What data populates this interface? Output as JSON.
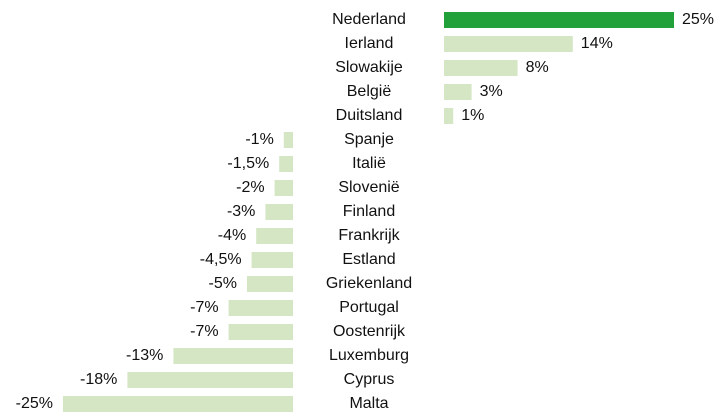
{
  "chart_data": {
    "type": "diverging-bar",
    "categories": [
      "Nederland",
      "Ierland",
      "Slowakije",
      "België",
      "Duitsland",
      "Spanje",
      "Italië",
      "Slovenië",
      "Finland",
      "Frankrijk",
      "Estland",
      "Griekenland",
      "Portugal",
      "Oostenrijk",
      "Luxemburg",
      "Cyprus",
      "Malta"
    ],
    "values": [
      25,
      14,
      8,
      3,
      1,
      -1,
      -1.5,
      -2,
      -3,
      -4,
      -4.5,
      -5,
      -7,
      -7,
      -13,
      -18,
      -25
    ],
    "value_labels": [
      "25%",
      "14%",
      "8%",
      "3%",
      "1%",
      "-1%",
      "-1,5%",
      "-2%",
      "-3%",
      "-4%",
      "-4,5%",
      "-5%",
      "-7%",
      "-7%",
      "-13%",
      "-18%",
      "-25%"
    ],
    "colors": [
      "#22a03a",
      "#d4e6c4",
      "#d4e6c4",
      "#d4e6c4",
      "#d4e6c4",
      "#d4e6c4",
      "#d4e6c4",
      "#d4e6c4",
      "#d4e6c4",
      "#d4e6c4",
      "#d4e6c4",
      "#d4e6c4",
      "#d4e6c4",
      "#d4e6c4",
      "#d4e6c4",
      "#d4e6c4",
      "#d4e6c4"
    ]
  }
}
